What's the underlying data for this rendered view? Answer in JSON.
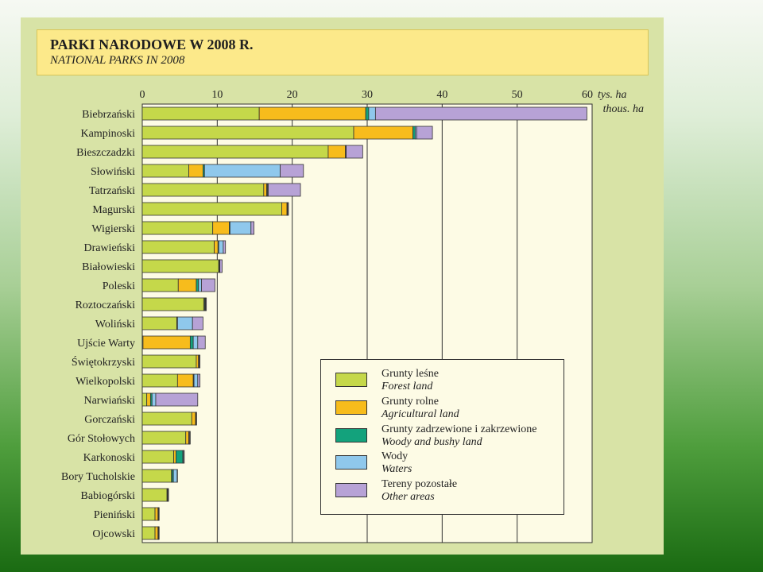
{
  "title": "PARKI NARODOWE W 2008 R.",
  "subtitle": "NATIONAL PARKS IN 2008",
  "colors": {
    "forest": "#c5d84a",
    "agricultural": "#f7bc1c",
    "woody": "#13a27c",
    "waters": "#8fc8ec",
    "other": "#b7a2d6",
    "plot_bg": "#fdfbe5",
    "panel_bg": "#d8e3a6",
    "title_bg": "#fce98a"
  },
  "chart_data": {
    "type": "bar",
    "orientation": "horizontal",
    "stacked": true,
    "title": "PARKI NARODOWE W 2008 R.",
    "subtitle": "NATIONAL PARKS IN 2008",
    "unit_label": "tys. ha",
    "unit_label_en": "thous. ha",
    "xlim": [
      0,
      60
    ],
    "xticks": [
      0,
      10,
      20,
      30,
      40,
      50,
      60
    ],
    "grid": true,
    "legend_position": "bottom-right",
    "categories": [
      "Biebrzański",
      "Kampinoski",
      "Bieszczadzki",
      "Słowiński",
      "Tatrzański",
      "Magurski",
      "Wigierski",
      "Drawieński",
      "Białowieski",
      "Poleski",
      "Roztoczański",
      "Woliński",
      "Ujście Warty",
      "Świętokrzyski",
      "Wielkopolski",
      "Narwiański",
      "Gorczański",
      "Gór Stołowych",
      "Karkonoski",
      "Bory Tucholskie",
      "Babiogórski",
      "Pieniński",
      "Ojcowski"
    ],
    "series": [
      {
        "key": "forest",
        "name": "Grunty leśne",
        "name_en": "Forest land",
        "values": [
          15.6,
          28.2,
          24.8,
          6.2,
          16.2,
          18.6,
          9.4,
          9.6,
          10.2,
          4.8,
          8.2,
          4.6,
          0.1,
          7.2,
          4.7,
          0.6,
          6.6,
          5.8,
          4.2,
          3.9,
          3.3,
          1.7,
          1.7
        ]
      },
      {
        "key": "agricultural",
        "name": "Grunty rolne",
        "name_en": "Agricultural land",
        "values": [
          14.2,
          7.9,
          2.3,
          1.9,
          0.4,
          0.7,
          2.2,
          0.5,
          0.05,
          2.4,
          0.1,
          0.05,
          6.3,
          0.3,
          2.1,
          0.5,
          0.5,
          0.4,
          0.3,
          0.05,
          0.05,
          0.4,
          0.4
        ]
      },
      {
        "key": "woody",
        "name": "Grunty zadrzewione i zakrzewione",
        "name_en": "Woody and bushy land",
        "values": [
          0.4,
          0.3,
          0.05,
          0.2,
          0.1,
          0.05,
          0.1,
          0.1,
          0.05,
          0.3,
          0.1,
          0.05,
          0.4,
          0.05,
          0.1,
          0.2,
          0.05,
          0.05,
          0.9,
          0.2,
          0.05,
          0.05,
          0.05
        ]
      },
      {
        "key": "waters",
        "name": "Wody",
        "name_en": "Waters",
        "values": [
          0.9,
          0.2,
          0.05,
          10.1,
          0.1,
          0.05,
          2.8,
          0.6,
          0.05,
          0.4,
          0.05,
          2.0,
          0.6,
          0.05,
          0.5,
          0.5,
          0.05,
          0.05,
          0.1,
          0.5,
          0.05,
          0.05,
          0.05
        ]
      },
      {
        "key": "other",
        "name": "Tereny pozostałe",
        "name_en": "Other areas",
        "values": [
          28.2,
          2.1,
          2.2,
          3.1,
          4.3,
          0.1,
          0.4,
          0.3,
          0.3,
          1.8,
          0.1,
          1.4,
          1.0,
          0.1,
          0.3,
          5.6,
          0.05,
          0.1,
          0.1,
          0.05,
          0.05,
          0.05,
          0.05
        ]
      }
    ]
  }
}
